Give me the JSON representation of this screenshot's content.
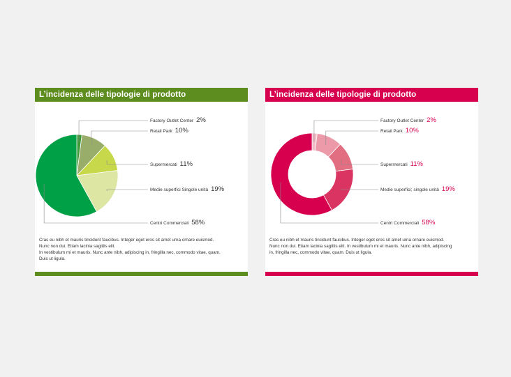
{
  "colors": {
    "green_accent": "#5e8d1f",
    "pink_accent": "#d6004f"
  },
  "cards": [
    {
      "title": "L’incidenza delle tipologie di prodotto",
      "body_lines": [
        "Cras eu nibh et mauris tincidunt faucibus. Integer eget eros sit amet urna ornare euismod.",
        "Nunc non dui. Etiam lacinia sagittis elit.",
        "In vestibulum mi et mauris. Nunc ante nibh, adipiscing in, fringilla nec, commodo vitae, quam.",
        "Duis ut ligula."
      ]
    },
    {
      "title": "L’incidenza delle tipologie di prodotto",
      "body_lines": [
        "Cras eu nibh et mauris tincidunt faucibus. Integer eget eros sit amet urna ornare euismod.",
        "Nunc non dui. Etiam lacinia sagittis elit. In vestibulum mi et mauris. Nunc ante nibh, adipiscing",
        "in, fringilla nec, commodo vitae, quam. Duis ut ligula."
      ]
    }
  ],
  "chart_data": [
    {
      "type": "pie",
      "categories": [
        "Factory Outlet Center",
        "Retail Park",
        "Supermercati",
        "Medie superfici Singole unità",
        "Centri Commerciali"
      ],
      "values": [
        2,
        10,
        11,
        19,
        58
      ],
      "value_labels": [
        "2%",
        "10%",
        "11%",
        "19%",
        "58%"
      ],
      "colors": [
        "#3f9a38",
        "#99ad6a",
        "#c7d94a",
        "#dde6a3",
        "#00a046"
      ]
    },
    {
      "type": "pie",
      "donut": true,
      "categories": [
        "Factory Outlet Center",
        "Retail Park",
        "Supermercati",
        "Medie superfici; singole unità",
        "Centri Commerciali"
      ],
      "values": [
        2,
        10,
        11,
        19,
        58
      ],
      "value_labels": [
        "2%",
        "10%",
        "11%",
        "19%",
        "58%"
      ],
      "colors": [
        "#f1bcc6",
        "#ec9aaa",
        "#e26e82",
        "#d93462",
        "#d6004f"
      ]
    }
  ]
}
